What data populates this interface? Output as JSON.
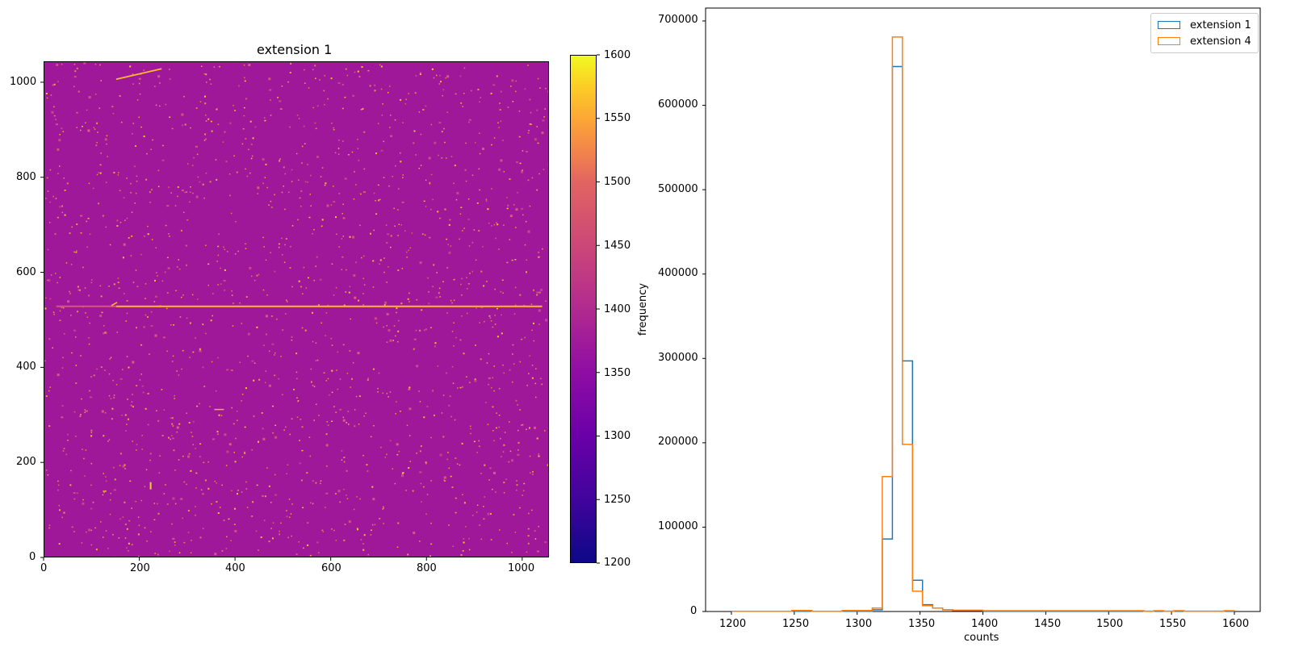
{
  "chart_data": [
    {
      "type": "heatmap",
      "title": "extension 1",
      "xlabel": "",
      "ylabel": "",
      "xlim": [
        0,
        1056
      ],
      "ylim": [
        0,
        1044
      ],
      "x_ticks": [
        "0",
        "200",
        "400",
        "600",
        "800",
        "1000"
      ],
      "y_ticks": [
        "0",
        "200",
        "400",
        "600",
        "800",
        "1000"
      ],
      "colormap": "plasma",
      "colorbar": {
        "vmin": 1200,
        "vmax": 1600,
        "ticks": [
          "1200",
          "1250",
          "1300",
          "1350",
          "1400",
          "1450",
          "1500",
          "1550",
          "1600"
        ]
      },
      "background_value_approx": 1333,
      "features": [
        "horizontal bright streak at y≈530 spanning x≈25 to 1040",
        "diagonal bright streak near top-left from (150,1008) to (245,1030)",
        "many scattered bright pixels (cosmic rays / hot pixels)"
      ]
    },
    {
      "type": "bar",
      "histtype": "step",
      "title": "",
      "xlabel": "counts",
      "ylabel": "frequency",
      "xlim": [
        1180,
        1620
      ],
      "ylim": [
        0,
        715000
      ],
      "x_ticks": [
        "1200",
        "1250",
        "1300",
        "1350",
        "1400",
        "1450",
        "1500",
        "1550",
        "1600"
      ],
      "y_ticks": [
        "0",
        "100000",
        "200000",
        "300000",
        "400000",
        "500000",
        "600000",
        "700000"
      ],
      "legend_position": "upper right",
      "bin_edges": [
        1200,
        1248,
        1264,
        1288,
        1312,
        1320,
        1328,
        1336,
        1344,
        1352,
        1360,
        1368,
        1376,
        1400,
        1528,
        1536,
        1544,
        1552,
        1560,
        1592,
        1600
      ],
      "series": [
        {
          "name": "extension 1",
          "color": "#1f77b4",
          "bins": [
            {
              "x0": 1200,
              "x1": 1312,
              "value": 300
            },
            {
              "x0": 1312,
              "x1": 1320,
              "value": 2000
            },
            {
              "x0": 1320,
              "x1": 1328,
              "value": 86000
            },
            {
              "x0": 1328,
              "x1": 1336,
              "value": 646000
            },
            {
              "x0": 1336,
              "x1": 1344,
              "value": 297000
            },
            {
              "x0": 1344,
              "x1": 1352,
              "value": 37000
            },
            {
              "x0": 1352,
              "x1": 1360,
              "value": 8000
            },
            {
              "x0": 1360,
              "x1": 1368,
              "value": 4000
            },
            {
              "x0": 1368,
              "x1": 1376,
              "value": 2000
            },
            {
              "x0": 1376,
              "x1": 1400,
              "value": 1200
            },
            {
              "x0": 1400,
              "x1": 1600,
              "value": 400
            }
          ]
        },
        {
          "name": "extension 4",
          "color": "#ff7f0e",
          "bins": [
            {
              "x0": 1200,
              "x1": 1248,
              "value": 200
            },
            {
              "x0": 1248,
              "x1": 1264,
              "value": 1200
            },
            {
              "x0": 1264,
              "x1": 1288,
              "value": 200
            },
            {
              "x0": 1288,
              "x1": 1312,
              "value": 1200
            },
            {
              "x0": 1312,
              "x1": 1320,
              "value": 4000
            },
            {
              "x0": 1320,
              "x1": 1328,
              "value": 160000
            },
            {
              "x0": 1328,
              "x1": 1336,
              "value": 681000
            },
            {
              "x0": 1336,
              "x1": 1344,
              "value": 198000
            },
            {
              "x0": 1344,
              "x1": 1352,
              "value": 24000
            },
            {
              "x0": 1352,
              "x1": 1360,
              "value": 7000
            },
            {
              "x0": 1360,
              "x1": 1368,
              "value": 4000
            },
            {
              "x0": 1368,
              "x1": 1376,
              "value": 2000
            },
            {
              "x0": 1376,
              "x1": 1400,
              "value": 1500
            },
            {
              "x0": 1400,
              "x1": 1528,
              "value": 1000
            },
            {
              "x0": 1528,
              "x1": 1536,
              "value": 200
            },
            {
              "x0": 1536,
              "x1": 1544,
              "value": 1000
            },
            {
              "x0": 1544,
              "x1": 1552,
              "value": 200
            },
            {
              "x0": 1552,
              "x1": 1560,
              "value": 1000
            },
            {
              "x0": 1560,
              "x1": 1592,
              "value": 200
            },
            {
              "x0": 1592,
              "x1": 1600,
              "value": 1000
            }
          ]
        }
      ]
    }
  ],
  "left_panel": {
    "title": "extension 1",
    "x_ticks": [
      "0",
      "200",
      "400",
      "600",
      "800",
      "1000"
    ],
    "y_ticks": [
      "0",
      "200",
      "400",
      "600",
      "800",
      "1000"
    ],
    "colorbar_ticks": [
      "1200",
      "1250",
      "1300",
      "1350",
      "1400",
      "1450",
      "1500",
      "1550",
      "1600"
    ]
  },
  "right_panel": {
    "xlabel": "counts",
    "ylabel": "frequency",
    "x_ticks": [
      "1200",
      "1250",
      "1300",
      "1350",
      "1400",
      "1450",
      "1500",
      "1550",
      "1600"
    ],
    "y_ticks": [
      "0",
      "100000",
      "200000",
      "300000",
      "400000",
      "500000",
      "600000",
      "700000"
    ],
    "legend": [
      {
        "label": "extension 1",
        "color": "#1f77b4"
      },
      {
        "label": "extension 4",
        "color": "#ff7f0e"
      }
    ]
  }
}
